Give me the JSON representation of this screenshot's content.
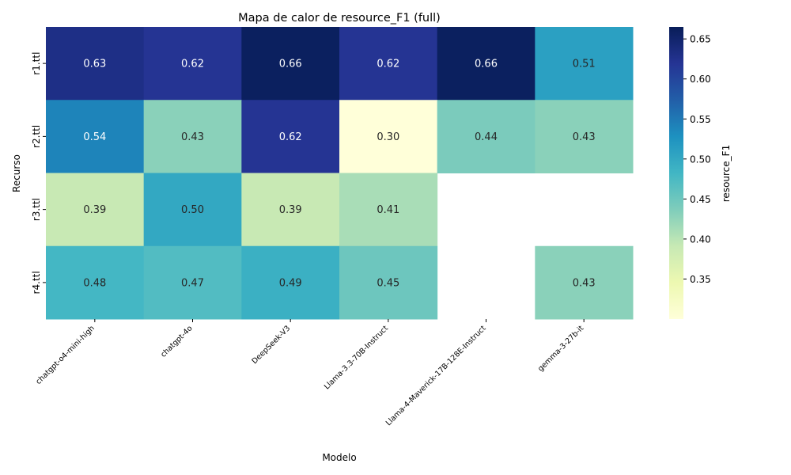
{
  "chart_data": {
    "type": "heatmap",
    "title": "Mapa de calor de resource_F1 (full)",
    "xlabel": "Modelo",
    "ylabel": "Recurso",
    "colorbar_label": "resource_F1",
    "colormap": "YlGnBu",
    "x_categories": [
      "chatgpt-o4-mini-high",
      "chatgpt-4o",
      "DeepSeek-V3",
      "Llama-3.3-70B-Instruct",
      "Llama-4-Maverick-17B-128E-Instruct",
      "gemma-3-27b-it"
    ],
    "y_categories": [
      "r1.ttl",
      "r2.ttl",
      "r3.ttl",
      "r4.ttl"
    ],
    "values": [
      [
        0.63,
        0.62,
        0.66,
        0.62,
        0.66,
        0.51
      ],
      [
        0.54,
        0.43,
        0.62,
        0.3,
        0.44,
        0.43
      ],
      [
        0.39,
        0.5,
        0.39,
        0.41,
        null,
        null
      ],
      [
        0.48,
        0.47,
        0.49,
        0.45,
        null,
        0.43
      ]
    ],
    "value_range": [
      0.3,
      0.665
    ],
    "colorbar_ticks": [
      0.35,
      0.4,
      0.45,
      0.5,
      0.55,
      0.6,
      0.65
    ],
    "annotation_format": "0.00"
  }
}
